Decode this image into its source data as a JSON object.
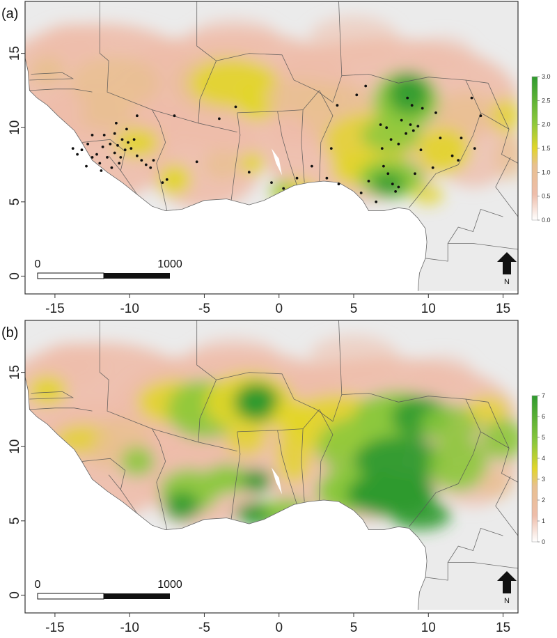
{
  "panels": [
    {
      "id": "a",
      "label": "(a)",
      "lon_ticks": [
        "-15",
        "-10",
        "-5",
        "0",
        "5",
        "10",
        "15"
      ],
      "lat_ticks": [
        "15",
        "10",
        "5",
        "0"
      ],
      "legend": {
        "ticks": [
          "3.0",
          "2.5",
          "2.0",
          "1.5",
          "1.0",
          "0.5",
          "0.0"
        ]
      },
      "scale_bar": {
        "start": "0",
        "end": "1000"
      },
      "north": "N",
      "has_points": true
    },
    {
      "id": "b",
      "label": "(b)",
      "lon_ticks": [
        "-15",
        "-10",
        "-5",
        "0",
        "5",
        "10",
        "15"
      ],
      "lat_ticks": [
        "15",
        "10",
        "5",
        "0"
      ],
      "legend": {
        "ticks": [
          "7",
          "6",
          "5",
          "4",
          "3",
          "2",
          "1",
          "0"
        ]
      },
      "scale_bar": {
        "start": "0",
        "end": "1000"
      },
      "north": "N",
      "has_points": false
    }
  ],
  "colors": {
    "low": "#f4e8e6",
    "pink": "#eebdaa",
    "tan": "#e8c090",
    "yellow": "#e2d52a",
    "green": "#8cc83c",
    "dark_green": "#2f9a2f",
    "land_gray": "#ebebeb",
    "ocean": "#ffffff"
  }
}
